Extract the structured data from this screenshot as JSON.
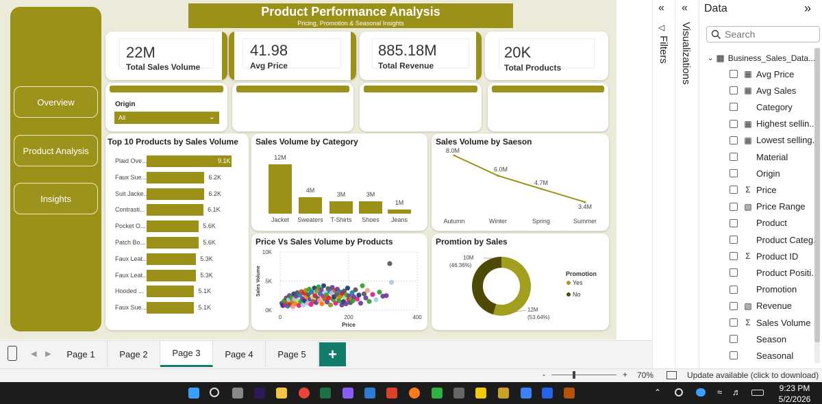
{
  "report": {
    "title": "Product Performance Analysis",
    "subtitle": "Pricing, Promotion & Seasonal Insights",
    "accent_color": "#9b9118",
    "nav": [
      {
        "label": "Overview"
      },
      {
        "label": "Product Analysis"
      },
      {
        "label": "Insights"
      }
    ],
    "kpis": [
      {
        "value": "22M",
        "label": "Total Sales Volume"
      },
      {
        "value": "41.98",
        "label": "Avg Price"
      },
      {
        "value": "885.18M",
        "label": "Total Revenue"
      },
      {
        "value": "20K",
        "label": "Total Products"
      }
    ],
    "slicer": {
      "label": "Origin",
      "selected": "All"
    }
  },
  "chart_data": [
    {
      "type": "bar",
      "orientation": "horizontal",
      "title": "Top 10 Products by Sales Volume",
      "categories": [
        "Plaid Ove...",
        "Faux Sue...",
        "Suit Jacke...",
        "Contrasti...",
        "Pocket O...",
        "Patch Bo...",
        "Faux Leat...",
        "Faux Leat...",
        "Hooded ...",
        "Faux Sue..."
      ],
      "values": [
        9100,
        6200,
        6200,
        6100,
        5600,
        5600,
        5300,
        5300,
        5100,
        5100
      ],
      "data_labels": [
        "9.1K",
        "6.2K",
        "6.2K",
        "6.1K",
        "5.6K",
        "5.6K",
        "5.3K",
        "5.3K",
        "5.1K",
        "5.1K"
      ]
    },
    {
      "type": "bar",
      "title": "Sales Volume by Category",
      "categories": [
        "Jacket",
        "Sweaters",
        "T-Shirts",
        "Shoes",
        "Jeans"
      ],
      "values": [
        12000000,
        4000000,
        3000000,
        3000000,
        1000000
      ],
      "data_labels": [
        "12M",
        "4M",
        "3M",
        "3M",
        "1M"
      ]
    },
    {
      "type": "line",
      "title": "Sales Volume by Saeson",
      "categories": [
        "Autumn",
        "Winter",
        "Spring",
        "Summer"
      ],
      "values": [
        8000000,
        6000000,
        4700000,
        3400000
      ],
      "data_labels": [
        "8.0M",
        "6.0M",
        "4.7M",
        "3.4M"
      ]
    },
    {
      "type": "scatter",
      "title": "Price Vs Sales Volume by Products",
      "xlabel": "Price",
      "ylabel": "Sales Volume",
      "xticks": [
        "0",
        "200",
        "400"
      ],
      "yticks": [
        "10K",
        "5K",
        "0K"
      ],
      "xlim": [
        0,
        400
      ],
      "ylim": [
        0,
        10000
      ],
      "grid": true,
      "points": [
        [
          5,
          1200,
          "#6a3d9a"
        ],
        [
          8,
          800,
          "#1f3b73"
        ],
        [
          12,
          1600,
          "#33a02c"
        ],
        [
          15,
          900,
          "#e31a8a"
        ],
        [
          18,
          2100,
          "#555555"
        ],
        [
          20,
          1300,
          "#b15928"
        ],
        [
          22,
          700,
          "#1f78b4"
        ],
        [
          25,
          1800,
          "#a6cee3"
        ],
        [
          27,
          2500,
          "#6a3d9a"
        ],
        [
          30,
          1000,
          "#e31a1c"
        ],
        [
          32,
          2200,
          "#33a02c"
        ],
        [
          35,
          1500,
          "#9b9118"
        ],
        [
          37,
          600,
          "#fb9a99"
        ],
        [
          40,
          2800,
          "#1f3b73"
        ],
        [
          42,
          1900,
          "#cab2d6"
        ],
        [
          45,
          1100,
          "#ff7f00"
        ],
        [
          47,
          2400,
          "#6a3d9a"
        ],
        [
          50,
          3000,
          "#555555"
        ],
        [
          52,
          1700,
          "#b2df8a"
        ],
        [
          55,
          800,
          "#e31a8a"
        ],
        [
          57,
          2600,
          "#1f78b4"
        ],
        [
          60,
          1400,
          "#33a02c"
        ],
        [
          62,
          3200,
          "#b15928"
        ],
        [
          65,
          2000,
          "#6a3d9a"
        ],
        [
          67,
          900,
          "#a6cee3"
        ],
        [
          70,
          2900,
          "#e31a1c"
        ],
        [
          72,
          1600,
          "#1f3b73"
        ],
        [
          75,
          3400,
          "#9b9118"
        ],
        [
          77,
          2300,
          "#ff7f00"
        ],
        [
          80,
          1200,
          "#cab2d6"
        ],
        [
          82,
          2700,
          "#555555"
        ],
        [
          85,
          3600,
          "#33a02c"
        ],
        [
          87,
          1900,
          "#6a3d9a"
        ],
        [
          90,
          1000,
          "#e31a8a"
        ],
        [
          92,
          3100,
          "#1f78b4"
        ],
        [
          95,
          2200,
          "#b2df8a"
        ],
        [
          97,
          1500,
          "#b15928"
        ],
        [
          100,
          3800,
          "#1f3b73"
        ],
        [
          102,
          2500,
          "#e31a1c"
        ],
        [
          105,
          1300,
          "#6a3d9a"
        ],
        [
          107,
          3300,
          "#9b9118"
        ],
        [
          110,
          2000,
          "#555555"
        ],
        [
          112,
          4000,
          "#33a02c"
        ],
        [
          115,
          1700,
          "#fb9a99"
        ],
        [
          117,
          2800,
          "#1f78b4"
        ],
        [
          120,
          3500,
          "#6a3d9a"
        ],
        [
          122,
          1100,
          "#ff7f00"
        ],
        [
          125,
          2400,
          "#e31a8a"
        ],
        [
          127,
          4200,
          "#1f3b73"
        ],
        [
          130,
          1900,
          "#b15928"
        ],
        [
          132,
          3000,
          "#a6cee3"
        ],
        [
          135,
          2600,
          "#33a02c"
        ],
        [
          137,
          1400,
          "#6a3d9a"
        ],
        [
          140,
          3700,
          "#555555"
        ],
        [
          142,
          2100,
          "#e31a1c"
        ],
        [
          145,
          3200,
          "#1f78b4"
        ],
        [
          147,
          900,
          "#9b9118"
        ],
        [
          150,
          2900,
          "#cab2d6"
        ],
        [
          152,
          3900,
          "#6a3d9a"
        ],
        [
          155,
          1800,
          "#33a02c"
        ],
        [
          157,
          2300,
          "#1f3b73"
        ],
        [
          160,
          3400,
          "#b15928"
        ],
        [
          162,
          1200,
          "#e31a8a"
        ],
        [
          165,
          2700,
          "#555555"
        ],
        [
          167,
          3600,
          "#6a3d9a"
        ],
        [
          170,
          2000,
          "#ff7f00"
        ],
        [
          172,
          1600,
          "#33a02c"
        ],
        [
          175,
          3100,
          "#1f78b4"
        ],
        [
          177,
          2400,
          "#9b9118"
        ],
        [
          180,
          900,
          "#6a3d9a"
        ],
        [
          182,
          2900,
          "#e31a1c"
        ],
        [
          185,
          1500,
          "#1f3b73"
        ],
        [
          187,
          3300,
          "#555555"
        ],
        [
          190,
          2200,
          "#b2df8a"
        ],
        [
          192,
          1100,
          "#6a3d9a"
        ],
        [
          195,
          2600,
          "#33a02c"
        ],
        [
          197,
          3800,
          "#1f3b73"
        ],
        [
          200,
          1800,
          "#e31a8a"
        ],
        [
          202,
          2400,
          "#6a3d9a"
        ],
        [
          205,
          1300,
          "#555555"
        ],
        [
          207,
          2000,
          "#9b9118"
        ],
        [
          210,
          3000,
          "#1f78b4"
        ],
        [
          212,
          1600,
          "#33a02c"
        ],
        [
          215,
          2300,
          "#6a3d9a"
        ],
        [
          220,
          3500,
          "#555555"
        ],
        [
          225,
          1900,
          "#e31a8a"
        ],
        [
          230,
          2600,
          "#1f3b73"
        ],
        [
          235,
          1200,
          "#6a3d9a"
        ],
        [
          240,
          4200,
          "#33a02c"
        ],
        [
          245,
          2800,
          "#555555"
        ],
        [
          250,
          2100,
          "#6a3d9a"
        ],
        [
          255,
          3400,
          "#fb9a99"
        ],
        [
          260,
          1500,
          "#33a02c"
        ],
        [
          270,
          2700,
          "#e31a8a"
        ],
        [
          280,
          1800,
          "#a6cee3"
        ],
        [
          290,
          3100,
          "#33a02c"
        ],
        [
          300,
          2400,
          "#6a3d9a"
        ],
        [
          320,
          8000,
          "#555555"
        ],
        [
          325,
          4800,
          "#a6cee3"
        ],
        [
          310,
          2500,
          "#6a3d9a"
        ]
      ]
    },
    {
      "type": "pie",
      "style": "donut",
      "title": "Promtion by Sales",
      "legend_title": "Promotion",
      "legend_position": "right",
      "labels": [
        "Yes",
        "No"
      ],
      "values": [
        12000000,
        10000000
      ],
      "colors": [
        "#a29e1e",
        "#4e4a05"
      ],
      "data_labels": [
        {
          "value": "12M",
          "percent": "(53.64%)"
        },
        {
          "value": "10M",
          "percent": "(46.36%)"
        }
      ]
    }
  ],
  "page_tabs": [
    {
      "label": "Page 1",
      "active": false
    },
    {
      "label": "Page 2",
      "active": false
    },
    {
      "label": "Page 3",
      "active": true
    },
    {
      "label": "Page 4",
      "active": false
    },
    {
      "label": "Page 5",
      "active": false
    }
  ],
  "add_page_label": "+",
  "panes": {
    "filters_label": "Filters",
    "visualizations_label": "Visualizations",
    "data": {
      "title": "Data",
      "search_placeholder": "Search",
      "table_name": "Business_Sales_Data...",
      "fields": [
        {
          "label": "Avg Price",
          "icon": "calculator-icon"
        },
        {
          "label": "Avg Sales",
          "icon": "calculator-icon"
        },
        {
          "label": "Category",
          "icon": ""
        },
        {
          "label": "Highest sellin...",
          "icon": "calculator-icon"
        },
        {
          "label": "Lowest selling...",
          "icon": "calculator-icon"
        },
        {
          "label": "Material",
          "icon": ""
        },
        {
          "label": "Origin",
          "icon": ""
        },
        {
          "label": "Price",
          "icon": "sigma-icon"
        },
        {
          "label": "Price Range",
          "icon": "calculated-column-icon"
        },
        {
          "label": "Product",
          "icon": ""
        },
        {
          "label": "Product Categ...",
          "icon": ""
        },
        {
          "label": "Product ID",
          "icon": "sigma-icon"
        },
        {
          "label": "Product Positi...",
          "icon": ""
        },
        {
          "label": "Promotion",
          "icon": ""
        },
        {
          "label": "Revenue",
          "icon": "calculated-column-icon"
        },
        {
          "label": "Sales Volume",
          "icon": "sigma-icon"
        },
        {
          "label": "Season",
          "icon": ""
        },
        {
          "label": "Seasonal",
          "icon": ""
        }
      ]
    }
  },
  "status": {
    "zoom_minus": "-",
    "zoom_plus": "+",
    "zoom": "70%",
    "zoom_fraction": 0.35,
    "update_text": "Update available (click to download)"
  },
  "taskbar": {
    "time": "9:23 PM",
    "date": "5/2/2026"
  }
}
